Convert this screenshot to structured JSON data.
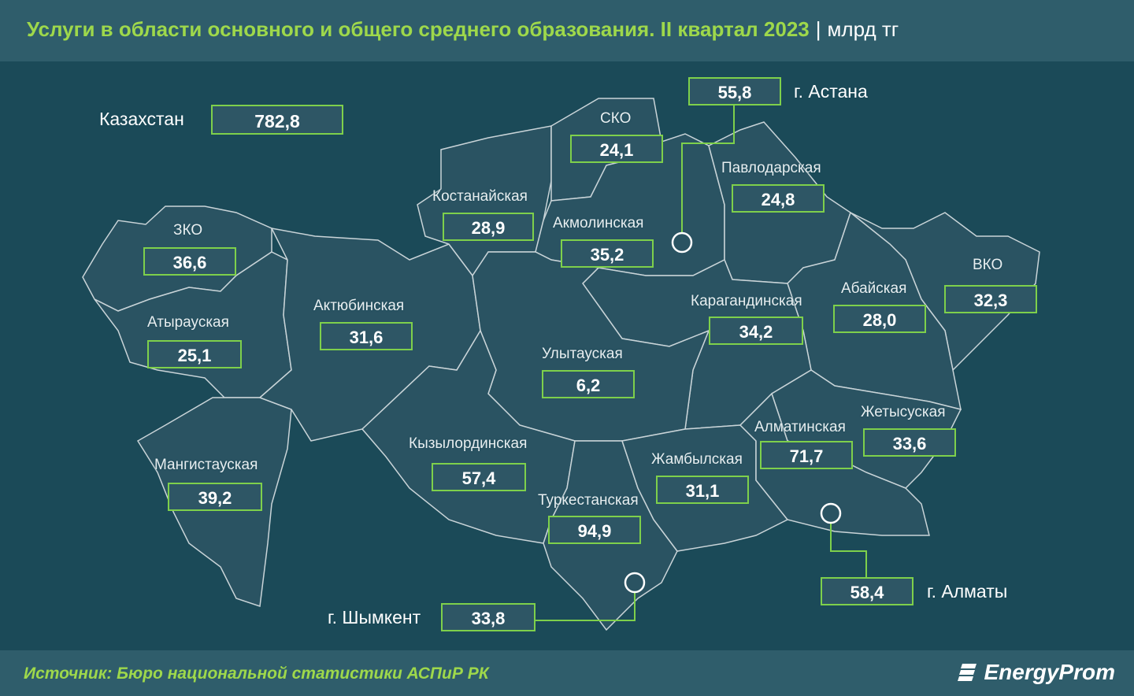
{
  "title": "Услуги в области основного и общего среднего образования. II квартал 2023",
  "title_separator": "|",
  "unit": "млрд тг",
  "source": "Источник: Бюро национальной статистики АСПиР РК",
  "brand": "EnergyProm",
  "colors": {
    "background": "#1b4a58",
    "region_fill": "#2a5362",
    "accent": "#7ed04b",
    "title": "#9ed84b"
  },
  "total": {
    "label": "Казахстан",
    "value": "782,8"
  },
  "regions": [
    {
      "key": "sko",
      "label": "СКО",
      "value": "24,1"
    },
    {
      "key": "astana",
      "label": "г. Астана",
      "value": "55,8"
    },
    {
      "key": "pavlodar",
      "label": "Павлодарская",
      "value": "24,8"
    },
    {
      "key": "kostanay",
      "label": "Костанайская",
      "value": "28,9"
    },
    {
      "key": "akmola",
      "label": "Акмолинская",
      "value": "35,2"
    },
    {
      "key": "zko",
      "label": "ЗКО",
      "value": "36,6"
    },
    {
      "key": "aktobe",
      "label": "Актюбинская",
      "value": "31,6"
    },
    {
      "key": "atyrau",
      "label": "Атырауская",
      "value": "25,1"
    },
    {
      "key": "karaganda",
      "label": "Карагандинская",
      "value": "34,2"
    },
    {
      "key": "abai",
      "label": "Абайская",
      "value": "28,0"
    },
    {
      "key": "vko",
      "label": "ВКО",
      "value": "32,3"
    },
    {
      "key": "ulytau",
      "label": "Улытауская",
      "value": "6,2"
    },
    {
      "key": "zhetysu",
      "label": "Жетысуская",
      "value": "33,6"
    },
    {
      "key": "almaty_reg",
      "label": "Алматинская",
      "value": "71,7"
    },
    {
      "key": "kyzylorda",
      "label": "Кызылординская",
      "value": "57,4"
    },
    {
      "key": "zhambyl",
      "label": "Жамбылская",
      "value": "31,1"
    },
    {
      "key": "mangystau",
      "label": "Мангистауская",
      "value": "39,2"
    },
    {
      "key": "turkestan",
      "label": "Туркестанская",
      "value": "94,9"
    },
    {
      "key": "almaty_city",
      "label": "г. Алматы",
      "value": "58,4"
    },
    {
      "key": "shymkent",
      "label": "г. Шымкент",
      "value": "33,8"
    }
  ]
}
